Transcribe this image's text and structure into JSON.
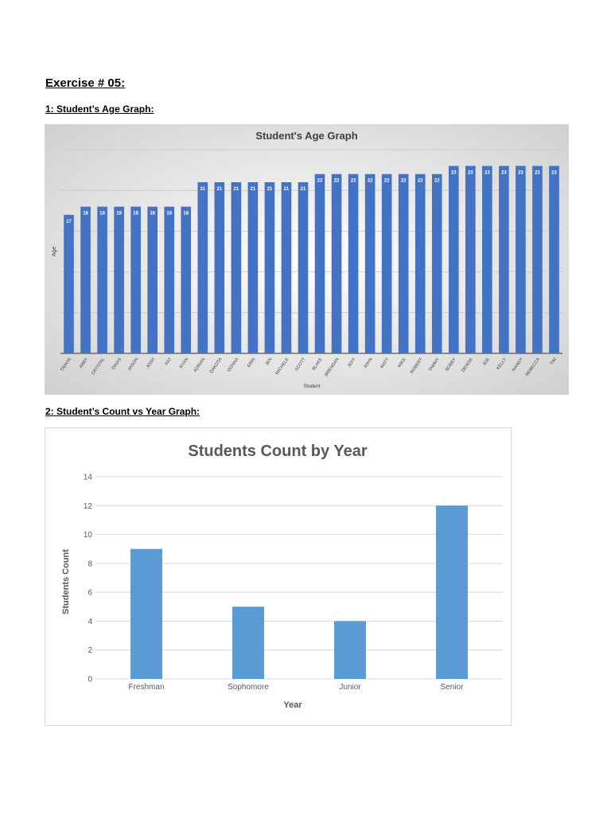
{
  "document": {
    "heading": "Exercise # 05:",
    "section1_title": "1: Student’s Age Graph:",
    "section2_title": "2: Student’s Count vs Year Graph:"
  },
  "chart_data": [
    {
      "type": "bar",
      "title": "Student's Age Graph",
      "xlabel": "Student",
      "ylabel": "Age",
      "ylim": [
        0,
        25
      ],
      "grid": true,
      "colors": {
        "bar": "#4472C4",
        "background": "#e6e6e6",
        "label": "#ffffff"
      },
      "categories": [
        "TRAVIS",
        "ABBY",
        "CRYSTAL",
        "DINAS",
        "JASON",
        "JOSH",
        "PAT",
        "RYAN",
        "ADRIAN",
        "DAKOTA",
        "DONNA",
        "ERIN",
        "JEN",
        "MICHELE",
        "SCOTT",
        "BLAKE",
        "BRENDAN",
        "JEFF",
        "JOHN",
        "MATT",
        "MIKE",
        "ROBERT",
        "TAMMY",
        "BOBBY",
        "DENISE",
        "JOE",
        "KELLY",
        "RANDY",
        "REBECCA",
        "TIM"
      ],
      "values": [
        17,
        18,
        18,
        18,
        18,
        18,
        18,
        18,
        21,
        21,
        21,
        21,
        21,
        21,
        21,
        22,
        22,
        22,
        22,
        22,
        22,
        22,
        22,
        23,
        23,
        23,
        23,
        23,
        23,
        23
      ]
    },
    {
      "type": "bar",
      "title": "Students Count by Year",
      "xlabel": "Year",
      "ylabel": "Students Count",
      "ylim": [
        0,
        14
      ],
      "yticks": [
        "0",
        "2",
        "4",
        "6",
        "8",
        "10",
        "12",
        "14"
      ],
      "grid": true,
      "colors": {
        "bar": "#5B9BD5",
        "grid": "#d9d9d9",
        "axis_text": "#595959"
      },
      "categories": [
        "Freshman",
        "Sophomore",
        "Junior",
        "Senior"
      ],
      "values": [
        9,
        5,
        4,
        12
      ]
    }
  ]
}
